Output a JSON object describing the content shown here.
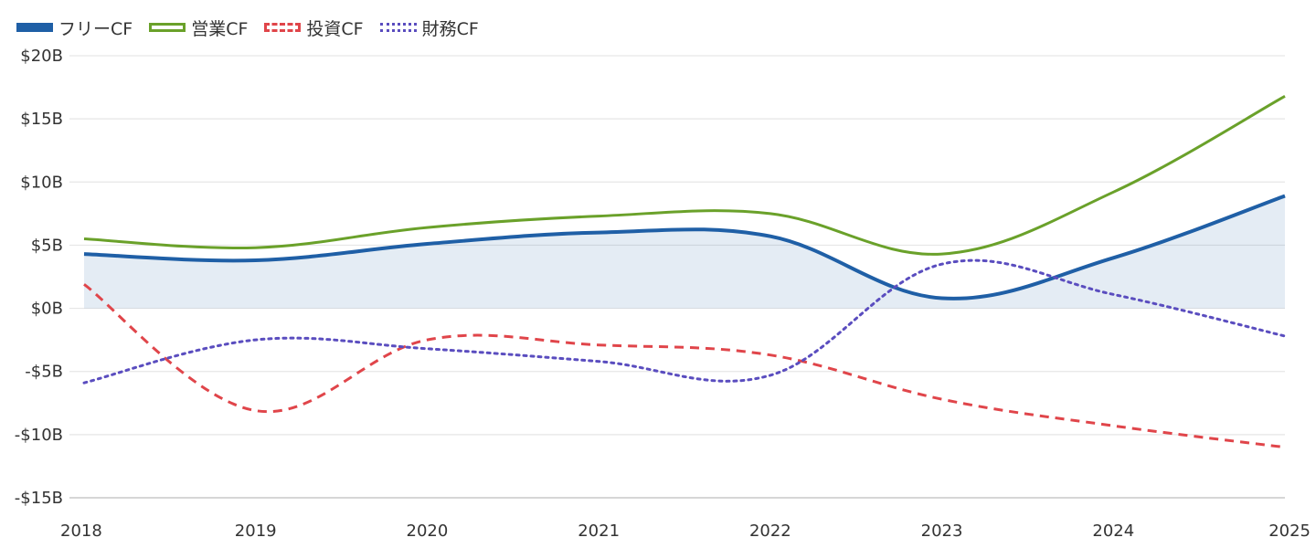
{
  "chart_data": {
    "type": "line",
    "x": [
      "2018",
      "2019",
      "2020",
      "2021",
      "2022",
      "2023",
      "2024",
      "2025"
    ],
    "ylim": [
      -15,
      20
    ],
    "yticks": [
      20,
      15,
      10,
      5,
      0,
      -5,
      -10,
      -15
    ],
    "ytick_labels": [
      "$20B",
      "$15B",
      "$10B",
      "$5B",
      "$0B",
      "-$5B",
      "-$10B",
      "-$15B"
    ],
    "legend_position": "top-left",
    "grid": true,
    "series": [
      {
        "name": "フリーCF",
        "values": [
          4.3,
          3.8,
          5.1,
          6.0,
          5.7,
          0.8,
          4.0,
          8.9
        ],
        "color": "#1f5fa6",
        "style": "solid",
        "fill": true
      },
      {
        "name": "営業CF",
        "values": [
          5.5,
          4.8,
          6.4,
          7.3,
          7.5,
          4.3,
          9.2,
          16.8
        ],
        "color": "#6aa12a",
        "style": "solid",
        "fill": false
      },
      {
        "name": "投資CF",
        "values": [
          1.9,
          -8.1,
          -2.5,
          -2.9,
          -3.7,
          -7.2,
          -9.3,
          -11.0
        ],
        "color": "#e0454a",
        "style": "dashed",
        "fill": false
      },
      {
        "name": "財務CF",
        "values": [
          -5.9,
          -2.5,
          -3.2,
          -4.2,
          -5.3,
          3.5,
          1.1,
          -2.2
        ],
        "color": "#5a4dbf",
        "style": "dotted",
        "fill": false
      }
    ]
  }
}
